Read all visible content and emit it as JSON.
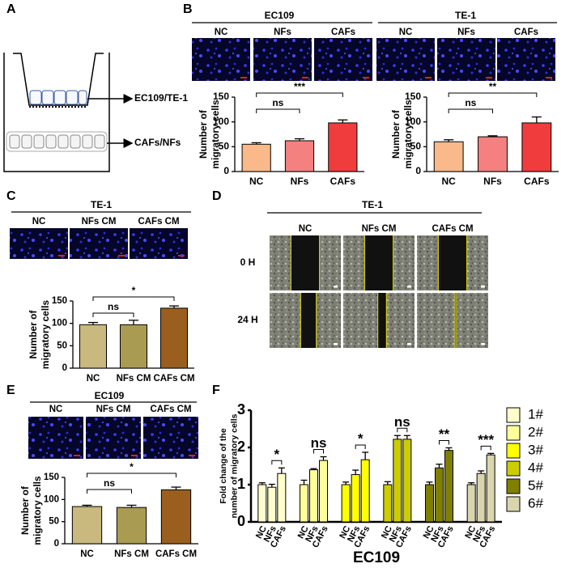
{
  "panel_labels": [
    "A",
    "B",
    "C",
    "D",
    "E",
    "F"
  ],
  "diagram": {
    "insert_label": "EC109/TE-1",
    "well_label": "CAFs/NFs"
  },
  "image_panels": [
    {
      "title": "EC109",
      "columns": [
        "NC",
        "NFs",
        "CAFs"
      ]
    },
    {
      "title": "TE-1",
      "columns": [
        "NC",
        "NFs",
        "CAFs"
      ]
    },
    {
      "title": "TE-1",
      "columns": [
        "NC",
        "NFs CM",
        "CAFs CM"
      ]
    },
    {
      "title": "TE-1",
      "columns": [
        "NC",
        "NFs CM",
        "CAFs CM"
      ],
      "rows": [
        "0 H",
        "24 H"
      ]
    },
    {
      "title": "EC109",
      "columns": [
        "NC",
        "NFs CM",
        "CAFs CM"
      ]
    }
  ],
  "chart_data": [
    {
      "type": "bar",
      "ylabel": [
        "Number of",
        "migratory cells"
      ],
      "categories": [
        "NC",
        "NFs",
        "CAFs"
      ],
      "values": [
        55,
        62,
        98
      ],
      "errors": [
        3,
        4,
        6
      ],
      "colors": [
        "#f9b98a",
        "#f58080",
        "#f03c3c"
      ],
      "ylim": [
        0,
        150
      ],
      "yticks": [
        0,
        50,
        100,
        150
      ],
      "annotations": [
        {
          "text": "ns",
          "between": [
            "NC",
            "NFs"
          ]
        },
        {
          "text": "***",
          "between": [
            "NC",
            "CAFs"
          ]
        }
      ]
    },
    {
      "type": "bar",
      "ylabel": [
        "Number of",
        "migratory cells"
      ],
      "categories": [
        "NC",
        "NFs",
        "CAFs"
      ],
      "values": [
        60,
        70,
        98
      ],
      "errors": [
        4,
        2,
        12
      ],
      "colors": [
        "#f9b98a",
        "#f58080",
        "#f03c3c"
      ],
      "ylim": [
        0,
        150
      ],
      "yticks": [
        0,
        50,
        100,
        150
      ],
      "annotations": [
        {
          "text": "ns",
          "between": [
            "NC",
            "NFs"
          ]
        },
        {
          "text": "**",
          "between": [
            "NC",
            "CAFs"
          ]
        }
      ]
    },
    {
      "type": "bar",
      "ylabel": [
        "Number of",
        "migratory cells"
      ],
      "categories": [
        "NC",
        "NFs CM",
        "CAFs CM"
      ],
      "values": [
        97,
        97,
        134
      ],
      "errors": [
        5,
        10,
        5
      ],
      "colors": [
        "#c9b97f",
        "#a99b52",
        "#9a5f1e"
      ],
      "ylim": [
        0,
        150
      ],
      "yticks": [
        0,
        50,
        100,
        150
      ],
      "annotations": [
        {
          "text": "ns",
          "between": [
            "NC",
            "NFs CM"
          ]
        },
        {
          "text": "*",
          "between": [
            "NC",
            "CAFs CM"
          ]
        }
      ]
    },
    {
      "type": "bar",
      "ylabel": [
        "Number of",
        "migratory cells"
      ],
      "categories": [
        "NC",
        "NFs CM",
        "CAFs CM"
      ],
      "values": [
        84,
        82,
        122
      ],
      "errors": [
        3,
        5,
        6
      ],
      "colors": [
        "#c9b97f",
        "#a99b52",
        "#9a5f1e"
      ],
      "ylim": [
        0,
        150
      ],
      "yticks": [
        0,
        50,
        100,
        150
      ],
      "annotations": [
        {
          "text": "ns",
          "between": [
            "NC",
            "NFs CM"
          ]
        },
        {
          "text": "*",
          "between": [
            "NC",
            "CAFs CM"
          ]
        }
      ]
    },
    {
      "type": "grouped_bar",
      "ylabel": [
        "Fold change of the",
        "number of migratory cells"
      ],
      "xlabel": "EC109",
      "categories": [
        "NC",
        "NFs",
        "CAFs"
      ],
      "ylim": [
        0,
        3
      ],
      "yticks": [
        0,
        1,
        2,
        3
      ],
      "legend": "right",
      "series": [
        {
          "name": "1#",
          "color": "#ffffcc",
          "values": [
            1.0,
            0.93,
            1.3
          ],
          "errors": [
            0.05,
            0.08,
            0.15
          ]
        },
        {
          "name": "2#",
          "color": "#ffff99",
          "values": [
            1.0,
            1.4,
            1.65
          ],
          "errors": [
            0.12,
            0.03,
            0.1
          ]
        },
        {
          "name": "3#",
          "color": "#ffff00",
          "values": [
            1.0,
            1.27,
            1.67
          ],
          "errors": [
            0.07,
            0.12,
            0.2
          ]
        },
        {
          "name": "4#",
          "color": "#cccc00",
          "values": [
            1.0,
            2.22,
            2.22
          ],
          "errors": [
            0.08,
            0.1,
            0.1
          ]
        },
        {
          "name": "5#",
          "color": "#808000",
          "values": [
            1.0,
            1.45,
            1.92
          ],
          "errors": [
            0.07,
            0.1,
            0.07
          ]
        },
        {
          "name": "6#",
          "color": "#d9d6ad",
          "values": [
            1.0,
            1.3,
            1.8
          ],
          "errors": [
            0.05,
            0.07,
            0.04
          ]
        }
      ],
      "annotations": [
        "*",
        "ns",
        "*",
        "ns",
        "**",
        "***"
      ]
    }
  ]
}
